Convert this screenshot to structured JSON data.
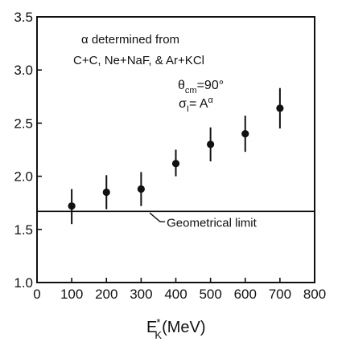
{
  "chart_data": {
    "type": "scatter",
    "xlabel": "E*K(MeV)",
    "xlabel_main": "E",
    "xlabel_sup": "*",
    "xlabel_sub": "K",
    "xlabel_unit": "(MeV)",
    "ylabel": "",
    "xlim": [
      0,
      800
    ],
    "ylim": [
      1.0,
      3.5
    ],
    "x_ticks": [
      0,
      100,
      200,
      300,
      400,
      500,
      600,
      700,
      800
    ],
    "x_tick_labels": [
      "0",
      "100",
      "200",
      "300",
      "400",
      "500",
      "600",
      "700",
      "800"
    ],
    "y_ticks": [
      1.0,
      1.5,
      2.0,
      2.5,
      3.0,
      3.5
    ],
    "y_tick_labels": [
      "1.0",
      "1.5",
      "2.0",
      "2.5",
      "3.0",
      "3.5"
    ],
    "grid": false,
    "series": [
      {
        "x": [
          100,
          200,
          300,
          400,
          500,
          600,
          700
        ],
        "y": [
          1.72,
          1.85,
          1.88,
          2.12,
          2.3,
          2.4,
          2.64
        ],
        "error_low": [
          1.55,
          1.69,
          1.72,
          2.0,
          2.14,
          2.23,
          2.45
        ],
        "error_high": [
          1.88,
          2.01,
          2.04,
          2.25,
          2.46,
          2.57,
          2.83
        ]
      }
    ],
    "reference_line": {
      "y": 1.67,
      "label": "Geometrical limit"
    },
    "annotations": {
      "line1": "α determined from",
      "line2": "C+C, Ne+NaF, & Ar+KCl",
      "theta_sym": "θ",
      "theta_sub": "cm",
      "theta_rest": "=90°",
      "sigma_sym": "σ",
      "sigma_sub": "I",
      "sigma_rest": "= A",
      "sigma_sup": "α"
    }
  }
}
